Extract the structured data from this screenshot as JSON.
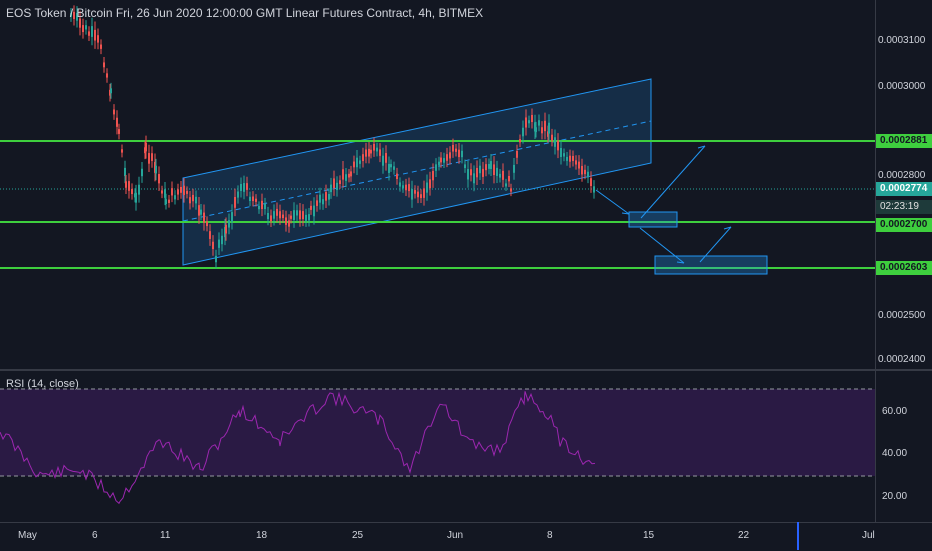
{
  "header": {
    "title": "EOS Token / Bitcoin Fri, 26 Jun 2020 12:00:00 GMT Linear Futures Contract, 4h, BITMEX"
  },
  "rsi": {
    "title": "RSI (14, close)",
    "scale": [
      "60.00",
      "40.00",
      "20.00"
    ]
  },
  "price_scale": [
    "0.0003100",
    "0.0003000",
    "0.0002800",
    "0.0002500",
    "0.0002400"
  ],
  "tags": {
    "resistance": "0.0002881",
    "last_price": "0.0002774",
    "countdown": "02:23:19",
    "support_1": "0.0002700",
    "support_2": "0.0002603"
  },
  "time_axis": [
    "May",
    "6",
    "11",
    "18",
    "25",
    "Jun",
    "8",
    "15",
    "22",
    "Jul"
  ],
  "colors": {
    "background": "#131722",
    "level_line": "#3ecf3e",
    "channel": "#2196f3",
    "up_candle": "#26a69a",
    "down_candle": "#ef5350",
    "rsi_line": "#9c27b0"
  }
}
